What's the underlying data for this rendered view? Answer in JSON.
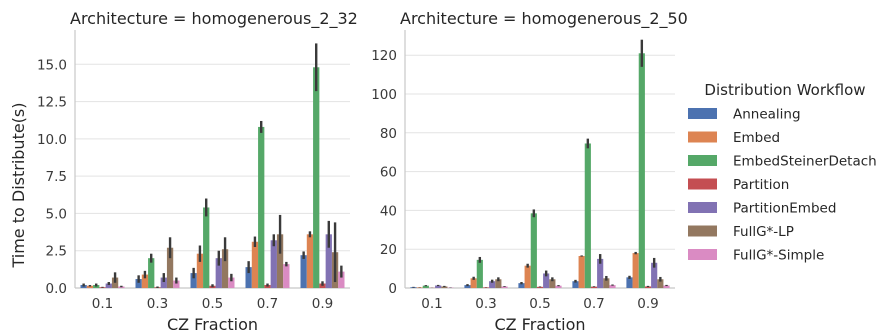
{
  "legend": {
    "title": "Distribution Workflow"
  },
  "chart_data": [
    {
      "type": "bar",
      "title": "Architecture = homogenerous_2_32",
      "xlabel": "CZ Fraction",
      "ylabel": "Time to Distribute(s)",
      "categories": [
        "0.1",
        "0.3",
        "0.5",
        "0.7",
        "0.9"
      ],
      "ylim": [
        0,
        17.3
      ],
      "yticks": [
        "0.0",
        "2.5",
        "5.0",
        "7.5",
        "10.0",
        "12.5",
        "15.0"
      ],
      "grid": true,
      "series": [
        {
          "name": "Annealing",
          "color": "#4c72b0",
          "values": [
            0.2,
            0.6,
            1.0,
            1.4,
            2.2
          ],
          "err": [
            0.1,
            0.25,
            0.35,
            0.4,
            0.25
          ]
        },
        {
          "name": "Embed",
          "color": "#dd8452",
          "values": [
            0.15,
            0.9,
            2.3,
            3.1,
            3.6
          ],
          "err": [
            0.05,
            0.25,
            0.55,
            0.35,
            0.2
          ]
        },
        {
          "name": "EmbedSteinerDetach",
          "color": "#55a868",
          "values": [
            0.2,
            2.0,
            5.4,
            10.8,
            14.8
          ],
          "err": [
            0.1,
            0.3,
            0.6,
            0.4,
            1.6
          ]
        },
        {
          "name": "Partition",
          "color": "#c44e52",
          "values": [
            0.05,
            0.05,
            0.15,
            0.2,
            0.3
          ],
          "err": [
            0.03,
            0.05,
            0.1,
            0.1,
            0.15
          ]
        },
        {
          "name": "PartitionEmbed",
          "color": "#8172b3",
          "values": [
            0.3,
            0.7,
            2.0,
            3.2,
            3.6
          ],
          "err": [
            0.1,
            0.3,
            0.5,
            0.4,
            0.9
          ]
        },
        {
          "name": "FullG*-LP",
          "color": "#937860",
          "values": [
            0.7,
            2.7,
            2.6,
            3.6,
            2.4
          ],
          "err": [
            0.35,
            0.7,
            0.8,
            1.3,
            2.0
          ]
        },
        {
          "name": "FullG*-Simple",
          "color": "#da8bc3",
          "values": [
            0.1,
            0.5,
            0.7,
            1.6,
            1.1
          ],
          "err": [
            0.05,
            0.2,
            0.25,
            0.15,
            0.4
          ]
        }
      ]
    },
    {
      "type": "bar",
      "title": "Architecture = homogenerous_2_50",
      "xlabel": "CZ Fraction",
      "ylabel": "",
      "categories": [
        "0.1",
        "0.3",
        "0.5",
        "0.7",
        "0.9"
      ],
      "ylim": [
        0,
        133
      ],
      "yticks": [
        "0",
        "20",
        "40",
        "60",
        "80",
        "100",
        "120"
      ],
      "grid": true,
      "series": [
        {
          "name": "Annealing",
          "color": "#4c72b0",
          "values": [
            0.4,
            1.5,
            2.5,
            3.5,
            5.5
          ],
          "err": [
            0.2,
            0.5,
            0.6,
            0.7,
            0.8
          ]
        },
        {
          "name": "Embed",
          "color": "#dd8452",
          "values": [
            0.3,
            5.0,
            11.5,
            16.5,
            18.0
          ],
          "err": [
            0.1,
            0.8,
            1.0,
            0.3,
            0.6
          ]
        },
        {
          "name": "EmbedSteinerDetach",
          "color": "#55a868",
          "values": [
            1.2,
            14.5,
            38.5,
            74.5,
            121.0
          ],
          "err": [
            0.3,
            1.5,
            2.0,
            2.5,
            7.0
          ]
        },
        {
          "name": "Partition",
          "color": "#c44e52",
          "values": [
            0.1,
            0.3,
            0.6,
            0.7,
            0.8
          ],
          "err": [
            0.05,
            0.1,
            0.2,
            0.2,
            0.3
          ]
        },
        {
          "name": "PartitionEmbed",
          "color": "#8172b3",
          "values": [
            1.3,
            3.5,
            7.5,
            15.0,
            13.0
          ],
          "err": [
            0.3,
            0.8,
            1.5,
            2.5,
            2.5
          ]
        },
        {
          "name": "FullG*-LP",
          "color": "#937860",
          "values": [
            0.8,
            4.5,
            4.5,
            5.0,
            4.5
          ],
          "err": [
            0.3,
            1.0,
            1.0,
            1.2,
            1.2
          ]
        },
        {
          "name": "FullG*-Simple",
          "color": "#da8bc3",
          "values": [
            0.2,
            0.8,
            1.2,
            1.5,
            1.3
          ],
          "err": [
            0.1,
            0.2,
            0.3,
            0.3,
            0.3
          ]
        }
      ]
    }
  ]
}
